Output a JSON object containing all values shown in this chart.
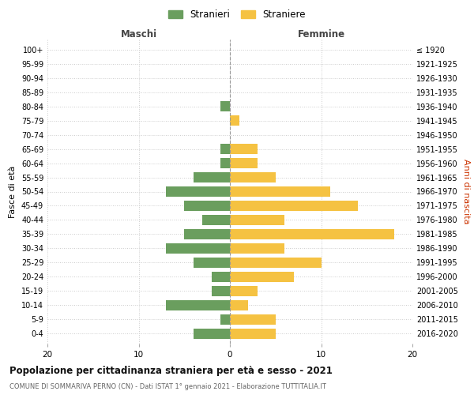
{
  "age_groups": [
    "0-4",
    "5-9",
    "10-14",
    "15-19",
    "20-24",
    "25-29",
    "30-34",
    "35-39",
    "40-44",
    "45-49",
    "50-54",
    "55-59",
    "60-64",
    "65-69",
    "70-74",
    "75-79",
    "80-84",
    "85-89",
    "90-94",
    "95-99",
    "100+"
  ],
  "birth_years": [
    "2016-2020",
    "2011-2015",
    "2006-2010",
    "2001-2005",
    "1996-2000",
    "1991-1995",
    "1986-1990",
    "1981-1985",
    "1976-1980",
    "1971-1975",
    "1966-1970",
    "1961-1965",
    "1956-1960",
    "1951-1955",
    "1946-1950",
    "1941-1945",
    "1936-1940",
    "1931-1935",
    "1926-1930",
    "1921-1925",
    "≤ 1920"
  ],
  "maschi": [
    4,
    1,
    7,
    2,
    2,
    4,
    7,
    5,
    3,
    5,
    7,
    4,
    1,
    1,
    0,
    0,
    1,
    0,
    0,
    0,
    0
  ],
  "femmine": [
    5,
    5,
    2,
    3,
    7,
    10,
    6,
    18,
    6,
    14,
    11,
    5,
    3,
    3,
    0,
    1,
    0,
    0,
    0,
    0,
    0
  ],
  "color_maschi": "#6a9e5e",
  "color_femmine": "#f5c242",
  "title": "Popolazione per cittadinanza straniera per età e sesso - 2021",
  "subtitle": "COMUNE DI SOMMARIVA PERNO (CN) - Dati ISTAT 1° gennaio 2021 - Elaborazione TUTTITALIA.IT",
  "ylabel_left": "Fasce di età",
  "ylabel_right": "Anni di nascita",
  "label_maschi": "Maschi",
  "label_femmine": "Femmine",
  "legend_stranieri": "Stranieri",
  "legend_straniere": "Straniere",
  "xlim": 20,
  "background_color": "#ffffff",
  "grid_color": "#cccccc"
}
